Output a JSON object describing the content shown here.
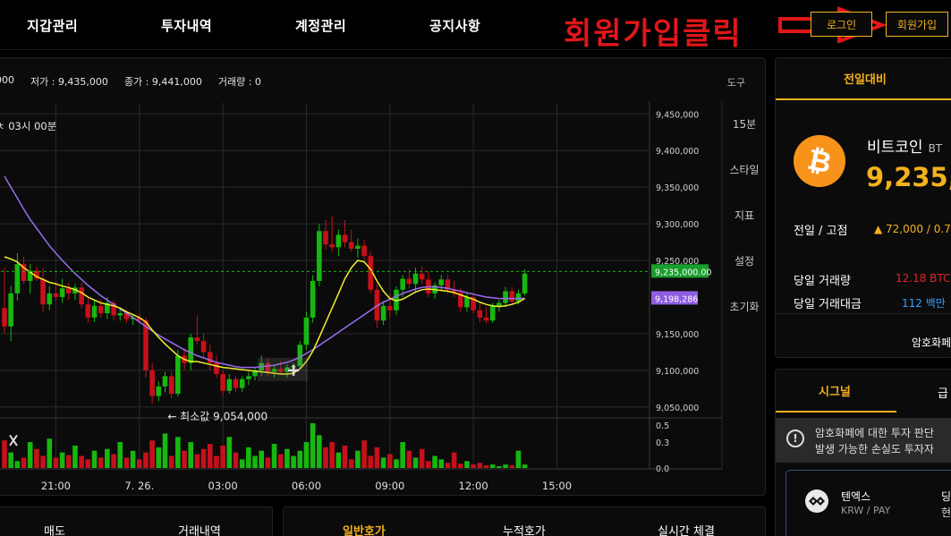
{
  "nav": {
    "items": [
      "지갑관리",
      "투자내역",
      "계정관리",
      "공지사항"
    ],
    "promo_text": "회원가입클릭",
    "login_label": "로그인",
    "signup_label": "회원가입"
  },
  "chart_header": {
    "open_label": "000",
    "low_label": "저가 : 9,435,000",
    "close_label": "종가 : 9,441,000",
    "volume_label": "거래량 : 0",
    "tools_label": "도구",
    "time_label": "ㅊ 03시 00분"
  },
  "side_menu": [
    "15분",
    "스타일",
    "지표",
    "설정",
    "초기화"
  ],
  "colors": {
    "accent": "#f3b11c",
    "up_candle": "#16b80f",
    "down_candle": "#c8101b",
    "ma_short": "#f2ef2a",
    "ma_long": "#9a6cf0",
    "current_price_tag": "#1a9f2c",
    "ma_price_tag": "#8f5ee0",
    "promo_red": "#e0161a"
  },
  "chart_data": {
    "type": "candlestick",
    "y_tick_labels": [
      "9,450,000",
      "9,400,000",
      "9,350,000",
      "9,300,000",
      "9,250,000",
      "9,150,000",
      "9,100,000",
      "9,050,000"
    ],
    "ylim": [
      9040000,
      9465000
    ],
    "volume_tick_labels": [
      "0.5",
      "0.3",
      "0.0"
    ],
    "volume_ylim": [
      0,
      0.55
    ],
    "x_tick_labels": [
      "21:00",
      "7. 26.",
      "03:00",
      "06:00",
      "09:00",
      "12:00",
      "15:00"
    ],
    "current_price": 9235000,
    "current_price_label": "9,235,000.00",
    "ma_price_label": "9,198,286",
    "min_annotation": "← 최소값 9,054,000",
    "min_value": 9054000,
    "candles": [
      {
        "o": 9185000,
        "h": 9240000,
        "l": 9150000,
        "c": 9160000
      },
      {
        "o": 9160000,
        "h": 9215000,
        "l": 9140000,
        "c": 9205000
      },
      {
        "o": 9205000,
        "h": 9260000,
        "l": 9195000,
        "c": 9245000
      },
      {
        "o": 9245000,
        "h": 9255000,
        "l": 9218000,
        "c": 9222000
      },
      {
        "o": 9222000,
        "h": 9245000,
        "l": 9205000,
        "c": 9236000
      },
      {
        "o": 9236000,
        "h": 9242000,
        "l": 9222000,
        "c": 9225000
      },
      {
        "o": 9225000,
        "h": 9240000,
        "l": 9180000,
        "c": 9190000
      },
      {
        "o": 9190000,
        "h": 9215000,
        "l": 9182000,
        "c": 9205000
      },
      {
        "o": 9205000,
        "h": 9220000,
        "l": 9195000,
        "c": 9200000
      },
      {
        "o": 9200000,
        "h": 9225000,
        "l": 9192000,
        "c": 9212000
      },
      {
        "o": 9212000,
        "h": 9220000,
        "l": 9196000,
        "c": 9205000
      },
      {
        "o": 9205000,
        "h": 9218000,
        "l": 9196000,
        "c": 9213000
      },
      {
        "o": 9213000,
        "h": 9220000,
        "l": 9185000,
        "c": 9190000
      },
      {
        "o": 9190000,
        "h": 9200000,
        "l": 9165000,
        "c": 9172000
      },
      {
        "o": 9172000,
        "h": 9196000,
        "l": 9166000,
        "c": 9188000
      },
      {
        "o": 9188000,
        "h": 9196000,
        "l": 9172000,
        "c": 9178000
      },
      {
        "o": 9178000,
        "h": 9200000,
        "l": 9170000,
        "c": 9192000
      },
      {
        "o": 9192000,
        "h": 9196000,
        "l": 9168000,
        "c": 9175000
      },
      {
        "o": 9175000,
        "h": 9186000,
        "l": 9168000,
        "c": 9178000
      },
      {
        "o": 9178000,
        "h": 9182000,
        "l": 9165000,
        "c": 9170000
      },
      {
        "o": 9170000,
        "h": 9176000,
        "l": 9162000,
        "c": 9172000
      },
      {
        "o": 9172000,
        "h": 9178000,
        "l": 9164000,
        "c": 9168000
      },
      {
        "o": 9168000,
        "h": 9172000,
        "l": 9090000,
        "c": 9100000
      },
      {
        "o": 9100000,
        "h": 9110000,
        "l": 9054000,
        "c": 9065000
      },
      {
        "o": 9065000,
        "h": 9085000,
        "l": 9058000,
        "c": 9078000
      },
      {
        "o": 9078000,
        "h": 9098000,
        "l": 9070000,
        "c": 9092000
      },
      {
        "o": 9092000,
        "h": 9098000,
        "l": 9062000,
        "c": 9068000
      },
      {
        "o": 9068000,
        "h": 9128000,
        "l": 9064000,
        "c": 9120000
      },
      {
        "o": 9120000,
        "h": 9130000,
        "l": 9100000,
        "c": 9110000
      },
      {
        "o": 9110000,
        "h": 9150000,
        "l": 9100000,
        "c": 9145000
      },
      {
        "o": 9145000,
        "h": 9175000,
        "l": 9135000,
        "c": 9140000
      },
      {
        "o": 9140000,
        "h": 9150000,
        "l": 9118000,
        "c": 9125000
      },
      {
        "o": 9125000,
        "h": 9135000,
        "l": 9100000,
        "c": 9110000
      },
      {
        "o": 9110000,
        "h": 9120000,
        "l": 9090000,
        "c": 9095000
      },
      {
        "o": 9095000,
        "h": 9100000,
        "l": 9065000,
        "c": 9072000
      },
      {
        "o": 9072000,
        "h": 9095000,
        "l": 9068000,
        "c": 9088000
      },
      {
        "o": 9088000,
        "h": 9092000,
        "l": 9070000,
        "c": 9076000
      },
      {
        "o": 9076000,
        "h": 9092000,
        "l": 9070000,
        "c": 9088000
      },
      {
        "o": 9088000,
        "h": 9098000,
        "l": 9080000,
        "c": 9092000
      },
      {
        "o": 9092000,
        "h": 9105000,
        "l": 9086000,
        "c": 9100000
      },
      {
        "o": 9100000,
        "h": 9120000,
        "l": 9092000,
        "c": 9110000
      },
      {
        "o": 9110000,
        "h": 9116000,
        "l": 9092000,
        "c": 9098000
      },
      {
        "o": 9098000,
        "h": 9108000,
        "l": 9090000,
        "c": 9102000
      },
      {
        "o": 9102000,
        "h": 9112000,
        "l": 9094000,
        "c": 9098000
      },
      {
        "o": 9098000,
        "h": 9108000,
        "l": 9090000,
        "c": 9104000
      },
      {
        "o": 9104000,
        "h": 9110000,
        "l": 9098000,
        "c": 9106000
      },
      {
        "o": 9106000,
        "h": 9140000,
        "l": 9102000,
        "c": 9135000
      },
      {
        "o": 9135000,
        "h": 9180000,
        "l": 9128000,
        "c": 9172000
      },
      {
        "o": 9172000,
        "h": 9230000,
        "l": 9165000,
        "c": 9222000
      },
      {
        "o": 9222000,
        "h": 9300000,
        "l": 9215000,
        "c": 9290000
      },
      {
        "o": 9290000,
        "h": 9305000,
        "l": 9265000,
        "c": 9272000
      },
      {
        "o": 9272000,
        "h": 9310000,
        "l": 9262000,
        "c": 9268000
      },
      {
        "o": 9268000,
        "h": 9292000,
        "l": 9256000,
        "c": 9285000
      },
      {
        "o": 9285000,
        "h": 9305000,
        "l": 9268000,
        "c": 9275000
      },
      {
        "o": 9275000,
        "h": 9292000,
        "l": 9262000,
        "c": 9266000
      },
      {
        "o": 9266000,
        "h": 9280000,
        "l": 9254000,
        "c": 9270000
      },
      {
        "o": 9270000,
        "h": 9278000,
        "l": 9250000,
        "c": 9256000
      },
      {
        "o": 9256000,
        "h": 9262000,
        "l": 9205000,
        "c": 9210000
      },
      {
        "o": 9210000,
        "h": 9218000,
        "l": 9158000,
        "c": 9168000
      },
      {
        "o": 9168000,
        "h": 9195000,
        "l": 9162000,
        "c": 9188000
      },
      {
        "o": 9188000,
        "h": 9205000,
        "l": 9172000,
        "c": 9182000
      },
      {
        "o": 9182000,
        "h": 9215000,
        "l": 9176000,
        "c": 9210000
      },
      {
        "o": 9210000,
        "h": 9230000,
        "l": 9200000,
        "c": 9225000
      },
      {
        "o": 9225000,
        "h": 9238000,
        "l": 9212000,
        "c": 9218000
      },
      {
        "o": 9218000,
        "h": 9240000,
        "l": 9206000,
        "c": 9232000
      },
      {
        "o": 9232000,
        "h": 9242000,
        "l": 9218000,
        "c": 9224000
      },
      {
        "o": 9224000,
        "h": 9235000,
        "l": 9200000,
        "c": 9205000
      },
      {
        "o": 9205000,
        "h": 9220000,
        "l": 9198000,
        "c": 9216000
      },
      {
        "o": 9216000,
        "h": 9230000,
        "l": 9208000,
        "c": 9224000
      },
      {
        "o": 9224000,
        "h": 9230000,
        "l": 9205000,
        "c": 9210000
      },
      {
        "o": 9210000,
        "h": 9222000,
        "l": 9200000,
        "c": 9206000
      },
      {
        "o": 9206000,
        "h": 9212000,
        "l": 9180000,
        "c": 9186000
      },
      {
        "o": 9186000,
        "h": 9205000,
        "l": 9180000,
        "c": 9200000
      },
      {
        "o": 9200000,
        "h": 9206000,
        "l": 9178000,
        "c": 9182000
      },
      {
        "o": 9182000,
        "h": 9192000,
        "l": 9166000,
        "c": 9172000
      },
      {
        "o": 9172000,
        "h": 9186000,
        "l": 9164000,
        "c": 9168000
      },
      {
        "o": 9168000,
        "h": 9192000,
        "l": 9165000,
        "c": 9188000
      },
      {
        "o": 9188000,
        "h": 9196000,
        "l": 9180000,
        "c": 9192000
      },
      {
        "o": 9192000,
        "h": 9214000,
        "l": 9186000,
        "c": 9208000
      },
      {
        "o": 9208000,
        "h": 9214000,
        "l": 9190000,
        "c": 9194000
      },
      {
        "o": 9194000,
        "h": 9210000,
        "l": 9190000,
        "c": 9205000
      },
      {
        "o": 9205000,
        "h": 9238000,
        "l": 9202000,
        "c": 9232000
      }
    ],
    "volumes": [
      0.32,
      0.18,
      0.08,
      0.12,
      0.3,
      0.22,
      0.14,
      0.34,
      0.12,
      0.18,
      0.15,
      0.26,
      0.14,
      0.1,
      0.2,
      0.12,
      0.22,
      0.16,
      0.3,
      0.12,
      0.2,
      0.1,
      0.18,
      0.32,
      0.24,
      0.4,
      0.14,
      0.36,
      0.2,
      0.3,
      0.16,
      0.22,
      0.28,
      0.14,
      0.26,
      0.36,
      0.18,
      0.1,
      0.24,
      0.14,
      0.2,
      0.12,
      0.28,
      0.16,
      0.22,
      0.14,
      0.2,
      0.3,
      0.52,
      0.38,
      0.24,
      0.3,
      0.18,
      0.26,
      0.1,
      0.2,
      0.32,
      0.14,
      0.24,
      0.12,
      0.16,
      0.1,
      0.3,
      0.2,
      0.12,
      0.22,
      0.08,
      0.14,
      0.1,
      0.06,
      0.18,
      0.05,
      0.08,
      0.04,
      0.06,
      0.03,
      0.04,
      0.02,
      0.04,
      0.03,
      0.2,
      0.04
    ],
    "ma_short": [
      9255000,
      9252000,
      9248000,
      9240000,
      9234000,
      9228000,
      9224000,
      9220000,
      9218000,
      9215000,
      9213000,
      9210000,
      9206000,
      9200000,
      9196000,
      9192000,
      9190000,
      9188000,
      9185000,
      9180000,
      9176000,
      9172000,
      9166000,
      9155000,
      9145000,
      9136000,
      9128000,
      9120000,
      9115000,
      9112000,
      9112000,
      9110000,
      9108000,
      9106000,
      9104000,
      9103000,
      9102000,
      9101000,
      9100000,
      9099000,
      9098000,
      9097000,
      9096000,
      9095000,
      9095000,
      9096000,
      9102000,
      9112000,
      9126000,
      9145000,
      9165000,
      9185000,
      9205000,
      9225000,
      9240000,
      9250000,
      9248000,
      9238000,
      9222000,
      9208000,
      9198000,
      9195000,
      9197000,
      9202000,
      9207000,
      9210000,
      9211000,
      9210000,
      9209000,
      9208000,
      9206000,
      9203000,
      9200000,
      9197000,
      9193000,
      9190000,
      9188000,
      9187000,
      9188000,
      9190000,
      9193000,
      9198000
    ],
    "ma_long": [
      9365000,
      9350000,
      9335000,
      9320000,
      9306000,
      9294000,
      9282000,
      9270000,
      9260000,
      9250000,
      9241000,
      9232000,
      9224000,
      9216000,
      9209000,
      9202000,
      9196000,
      9190000,
      9184000,
      9178000,
      9172000,
      9166000,
      9160000,
      9154000,
      9148000,
      9143000,
      9138000,
      9133000,
      9128000,
      9124000,
      9120000,
      9117000,
      9114000,
      9111000,
      9109000,
      9107000,
      9105000,
      9104000,
      9104000,
      9104000,
      9105000,
      9106000,
      9107000,
      9109000,
      9111000,
      9114000,
      9118000,
      9123000,
      9128000,
      9134000,
      9140000,
      9146000,
      9152000,
      9158000,
      9164000,
      9170000,
      9176000,
      9182000,
      9188000,
      9193000,
      9197000,
      9201000,
      9205000,
      9208000,
      9211000,
      9213000,
      9214000,
      9214000,
      9213000,
      9212000,
      9210000,
      9208000,
      9206000,
      9204000,
      9202000,
      9200000,
      9199000,
      9198000,
      9198000,
      9198000,
      9198000,
      9198286
    ]
  },
  "ticker": {
    "tab_label": "전일대비",
    "coin_name": "비트코인",
    "coin_symbol": "BT",
    "price": "9,235,0",
    "prev_high_label": "전일 / 고점",
    "prev_high_value": "▲ 72,000 / 0.7",
    "volume_label": "당일 거래량",
    "volume_value": "12.18 BTC",
    "amount_label": "당일 거래대금",
    "amount_value": "112 백만",
    "footer": "암호화페"
  },
  "signal": {
    "tab_label": "시그널",
    "tab2_label": "급",
    "notice_icon": "!",
    "notice_line1": "암호화페에 대한 투자 판단",
    "notice_line2": "발생 가능한 손실도 투자자",
    "exchange_name": "텐엑스",
    "exchange_pair": "KRW / PAY",
    "trunc1": "딩",
    "trunc2": "현"
  },
  "bottom_tabs": {
    "left": [
      "매도",
      "거래내역"
    ],
    "right": [
      "일반호가",
      "누적호가",
      "실시간 체결"
    ]
  }
}
